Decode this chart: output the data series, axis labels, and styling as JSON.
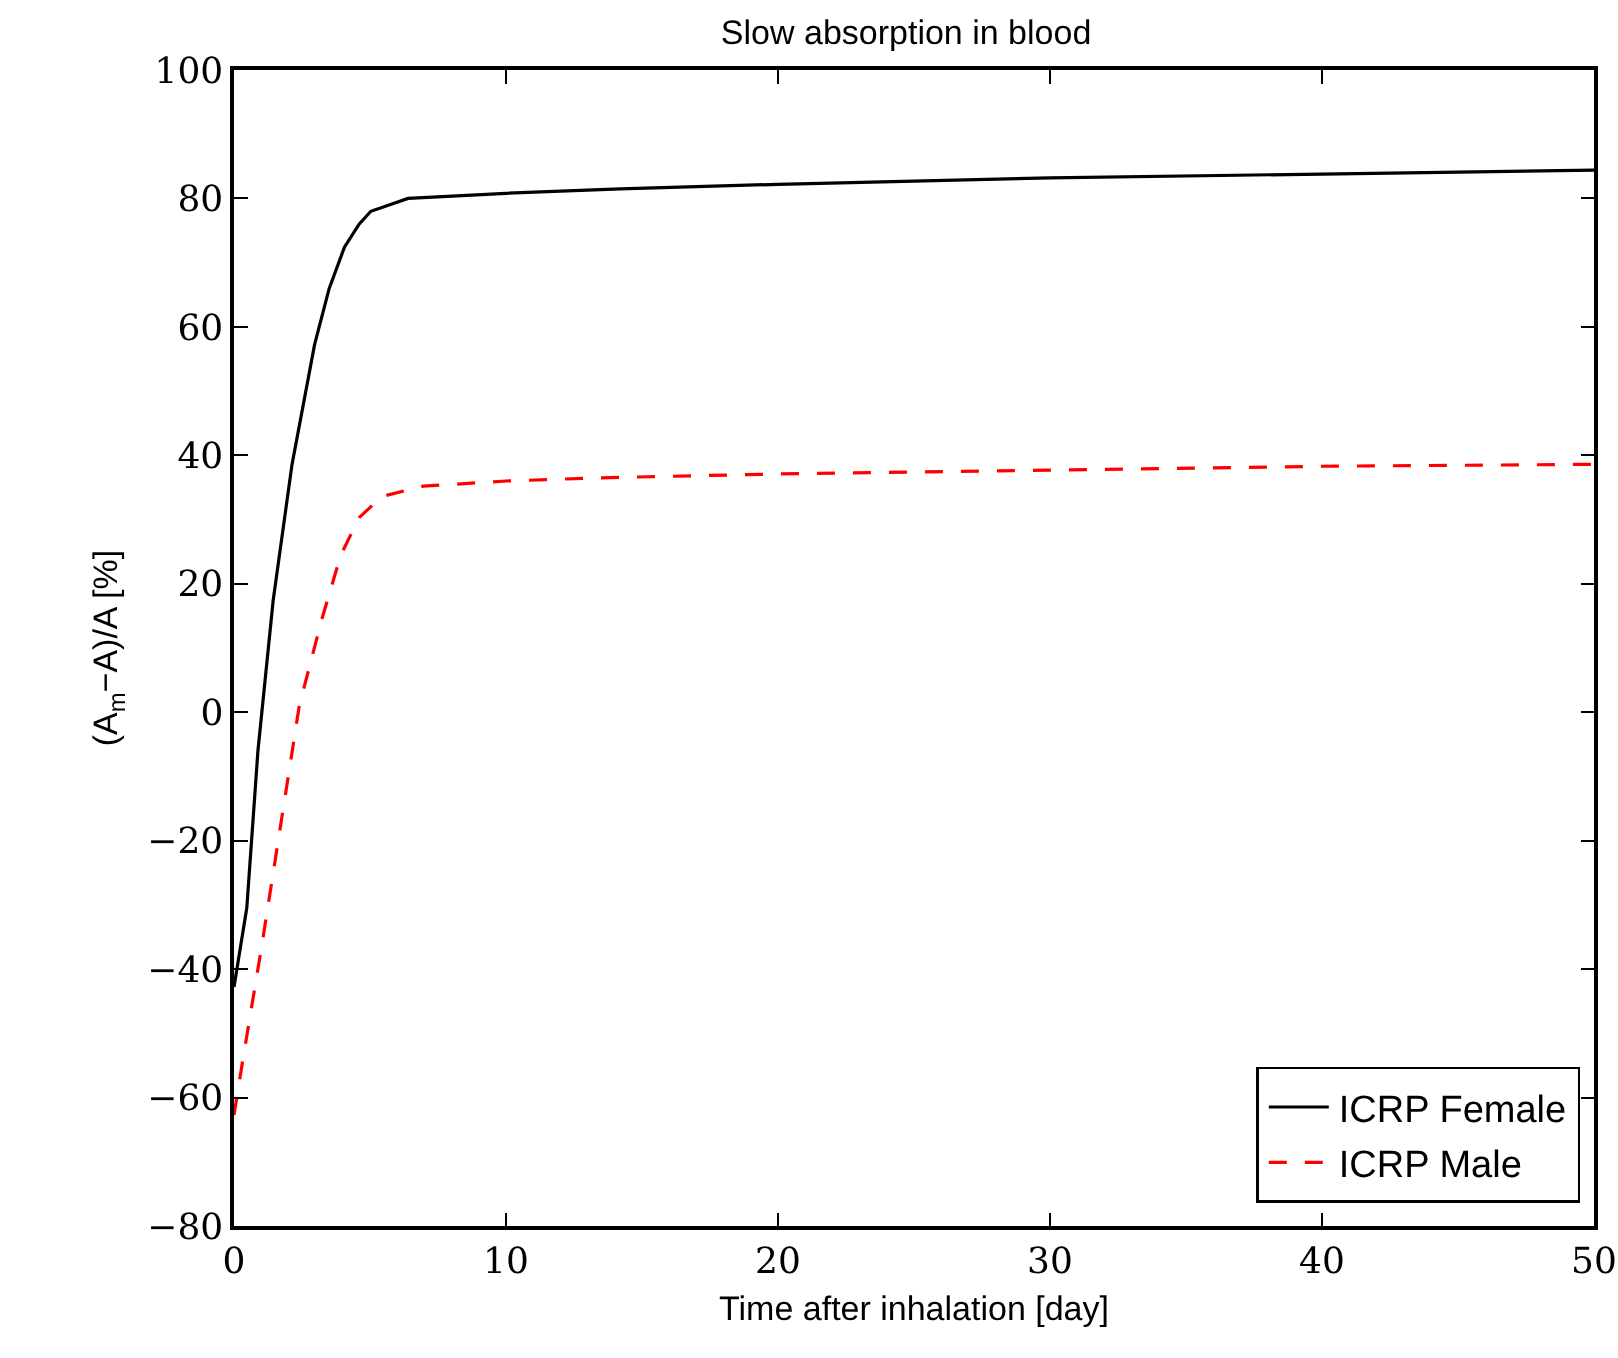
{
  "chart_data": {
    "type": "line",
    "title": "Slow absorption in blood",
    "xlabel": "Time after inhalation [day]",
    "ylabel": "(A$_{m}$−A)/A [%]",
    "xlim": [
      0,
      50
    ],
    "xticks": [
      0,
      10,
      20,
      30,
      40,
      50
    ],
    "ylim": [
      -80,
      100
    ],
    "yticks": [
      -80,
      -60,
      -40,
      -20,
      0,
      20,
      40,
      60,
      80,
      100
    ],
    "grid": false,
    "legend": "bottom right",
    "marker": "none",
    "series": [
      {
        "name": "ICRP Female",
        "color": "#000000",
        "line_style": "solid",
        "x": [
          0,
          0.47,
          0.88,
          1.44,
          2.13,
          2.96,
          3.5,
          4.06,
          4.6,
          5.03,
          6.4,
          10,
          14.2,
          20,
          30,
          40,
          50
        ],
        "values": [
          -42.8,
          -30.5,
          -6,
          17.4,
          38.5,
          57.2,
          66,
          72.4,
          76,
          78,
          80,
          80.8,
          81.5,
          82.2,
          83.2,
          83.8,
          84.4
        ]
      },
      {
        "name": "ICRP Male",
        "color": "#ff0000",
        "line_style": "dashed",
        "x": [
          0,
          0.33,
          1.02,
          1.71,
          2.4,
          3.23,
          3.92,
          4.6,
          5.44,
          6.96,
          10,
          13.45,
          20,
          30,
          40,
          50
        ],
        "values": [
          -62.7,
          -54,
          -36.4,
          -17.7,
          1,
          14.5,
          24.4,
          30.3,
          33.6,
          35.2,
          36,
          36.5,
          37.1,
          37.7,
          38.3,
          38.6
        ]
      }
    ]
  }
}
